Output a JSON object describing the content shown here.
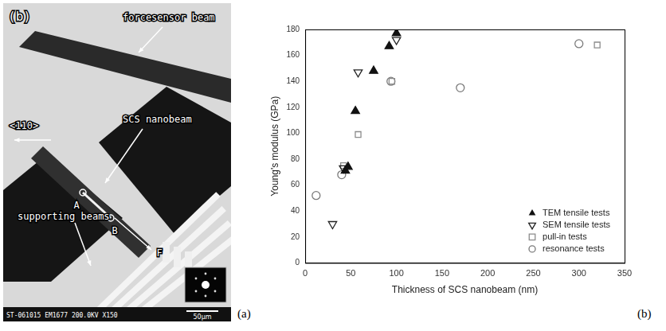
{
  "panel_labels": [
    "(a)",
    "(b)"
  ],
  "micrograph": {
    "panel_label": "(b)",
    "labels": [
      "forcesensor beam",
      "<110>",
      "SCS nanobeam",
      "A",
      "B",
      "F",
      "supporting beams"
    ],
    "footer": "ST-061015  EM1677 200.0KV  X150",
    "scale_bar": "50μm"
  },
  "chart_data": {
    "type": "scatter",
    "x_label": "Thickness of SCS nanobeam (nm)",
    "y_label": "Young's modulus (GPa)",
    "xlim": [
      0,
      350
    ],
    "xticks": [
      0,
      50,
      100,
      150,
      200,
      250,
      300,
      350
    ],
    "ylim": [
      0,
      180
    ],
    "yticks": [
      0,
      20,
      40,
      60,
      80,
      100,
      120,
      140,
      160,
      180
    ],
    "grid": false,
    "legend": "lower right",
    "series": [
      {
        "name": "TEM tensile tests",
        "color": "#111111",
        "marker": "triangle",
        "x": [
          44,
          47,
          55,
          75,
          92,
          100
        ],
        "values": [
          71,
          74,
          117,
          148,
          167,
          177
        ]
      },
      {
        "name": "SEM tensile tests",
        "color": "#222222",
        "marker": "triangle-down-open",
        "x": [
          30,
          42,
          58,
          100
        ],
        "values": [
          30,
          73,
          147,
          172
        ]
      },
      {
        "name": "pull-in tests",
        "color": "#8c8c8c",
        "marker": "square-open",
        "x": [
          42,
          58,
          95,
          320
        ],
        "values": [
          75,
          99,
          140,
          168
        ]
      },
      {
        "name": "resonance tests",
        "color": "#7a7a7a",
        "marker": "circle-open",
        "x": [
          12,
          40,
          94,
          170,
          300
        ],
        "values": [
          52,
          68,
          140,
          135,
          169
        ]
      }
    ]
  }
}
